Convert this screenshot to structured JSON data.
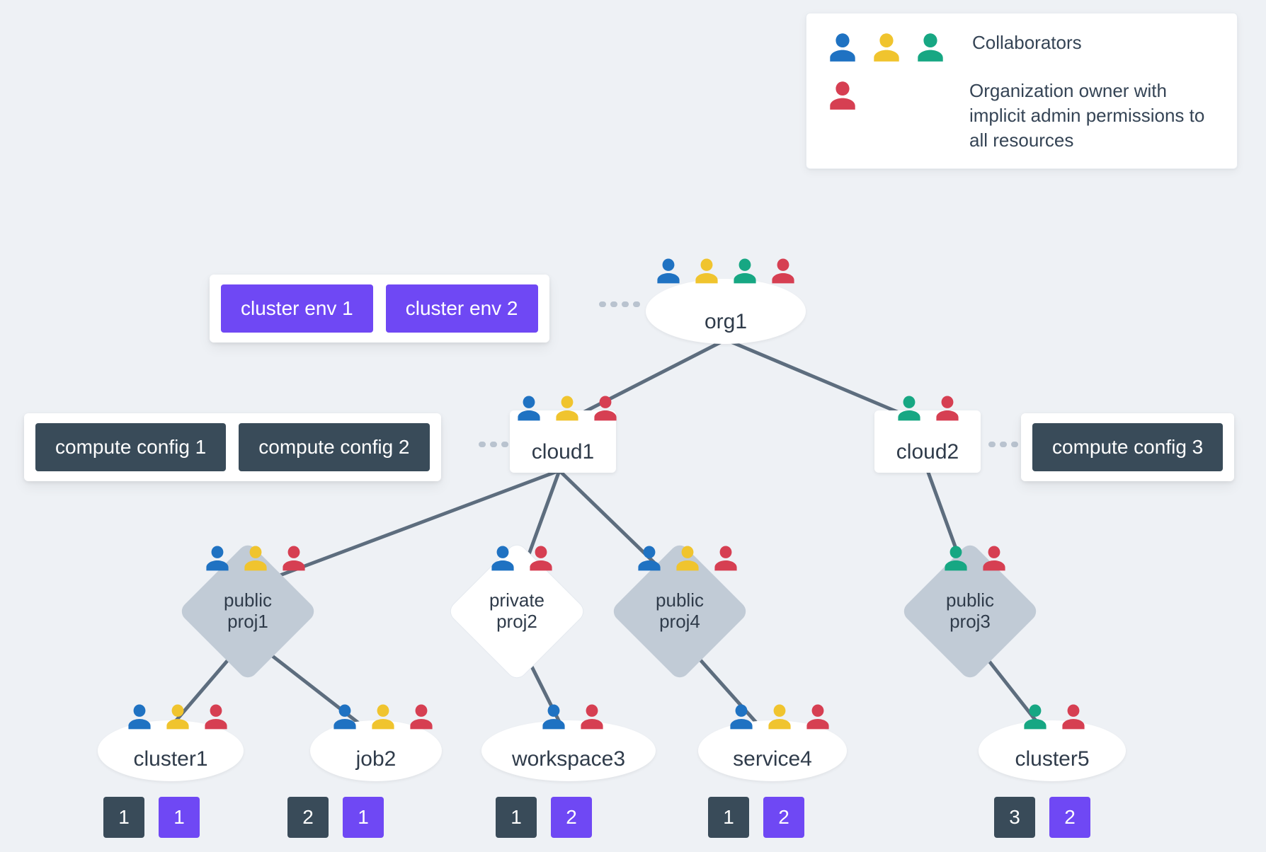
{
  "colors": {
    "background": "#eef1f5",
    "text": "#2f3b4a",
    "edge_solid": "#5d6d7e",
    "edge_dash": "#b9c3cf",
    "pill_purple": "#6f48f4",
    "pill_slate": "#394b59",
    "diamond_public": "#c1cbd6",
    "diamond_private": "#ffffff",
    "node_white": "#ffffff",
    "person_blue": "#1f72c2",
    "person_yellow": "#f0c42e",
    "person_green": "#17a783",
    "person_red": "#d63f52"
  },
  "legend": {
    "row1": {
      "icons": [
        "blue",
        "yellow",
        "green"
      ],
      "text": "Collaborators"
    },
    "row2": {
      "icons": [
        "red"
      ],
      "text": "Organization owner with implicit admin permissions to all resources"
    }
  },
  "env_card": {
    "items": [
      {
        "label": "cluster env 1",
        "style": "purple"
      },
      {
        "label": "cluster env 2",
        "style": "purple"
      }
    ]
  },
  "cfg_card_left": {
    "items": [
      {
        "label": "compute config 1",
        "style": "slate"
      },
      {
        "label": "compute config 2",
        "style": "slate"
      }
    ]
  },
  "cfg_card_right": {
    "items": [
      {
        "label": "compute config 3",
        "style": "slate"
      }
    ]
  },
  "nodes": {
    "org1": {
      "label": "org1",
      "people": [
        "blue",
        "yellow",
        "green",
        "red"
      ]
    },
    "cloud1": {
      "label": "cloud1",
      "people": [
        "blue",
        "yellow",
        "red"
      ]
    },
    "cloud2": {
      "label": "cloud2",
      "people": [
        "green",
        "red"
      ]
    },
    "proj1": {
      "labelTop": "public",
      "labelBottom": "proj1",
      "people": [
        "blue",
        "yellow",
        "red"
      ],
      "kind": "public"
    },
    "proj2": {
      "labelTop": "private",
      "labelBottom": "proj2",
      "people": [
        "blue",
        "red"
      ],
      "kind": "private"
    },
    "proj4": {
      "labelTop": "public",
      "labelBottom": "proj4",
      "people": [
        "blue",
        "yellow",
        "red"
      ],
      "kind": "public"
    },
    "proj3": {
      "labelTop": "public",
      "labelBottom": "proj3",
      "people": [
        "green",
        "red"
      ],
      "kind": "public"
    },
    "cluster1": {
      "label": "cluster1",
      "people": [
        "blue",
        "yellow",
        "red"
      ]
    },
    "job2": {
      "label": "job2",
      "people": [
        "blue",
        "yellow",
        "red"
      ]
    },
    "workspace3": {
      "label": "workspace3",
      "people": [
        "blue",
        "red"
      ]
    },
    "service4": {
      "label": "service4",
      "people": [
        "blue",
        "yellow",
        "red"
      ]
    },
    "cluster5": {
      "label": "cluster5",
      "people": [
        "green",
        "red"
      ]
    }
  },
  "chips": {
    "cluster1": {
      "slate": "1",
      "purple": "1"
    },
    "job2": {
      "slate": "2",
      "purple": "1"
    },
    "workspace3": {
      "slate": "1",
      "purple": "2"
    },
    "service4": {
      "slate": "1",
      "purple": "2"
    },
    "cluster5": {
      "slate": "3",
      "purple": "2"
    }
  }
}
